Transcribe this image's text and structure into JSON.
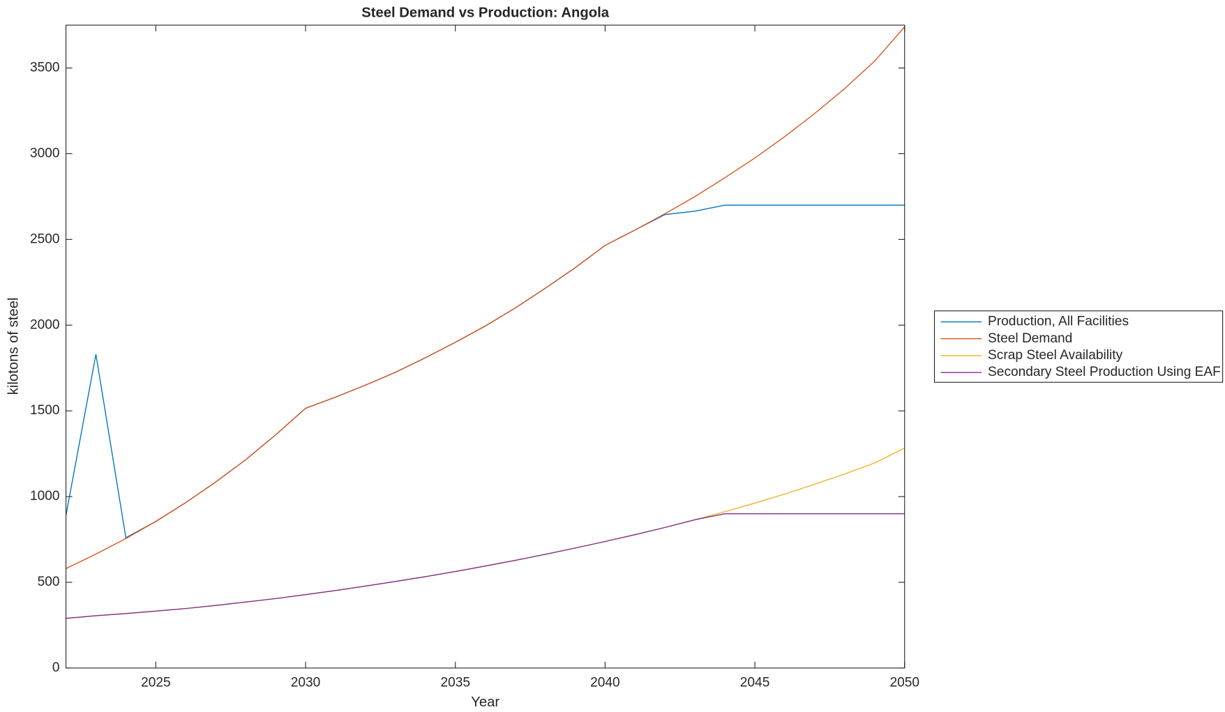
{
  "chart_data": {
    "type": "line",
    "title": "Steel Demand vs Production: Angola",
    "x_label": "Year",
    "y_label": "kilotons of steel",
    "x": [
      2022,
      2023,
      2024,
      2025,
      2026,
      2027,
      2028,
      2029,
      2030,
      2031,
      2032,
      2033,
      2034,
      2035,
      2036,
      2037,
      2038,
      2039,
      2040,
      2041,
      2042,
      2043,
      2044,
      2045,
      2046,
      2047,
      2048,
      2049,
      2050
    ],
    "series": [
      {
        "name": "Production, All Facilities",
        "color": "#0072BD",
        "values": [
          890,
          1830,
          760,
          855,
          965,
          1085,
          1215,
          1360,
          1515,
          1580,
          1650,
          1725,
          1810,
          1900,
          1995,
          2100,
          2215,
          2335,
          2465,
          2555,
          2645,
          2665,
          2700,
          2700,
          2700,
          2700,
          2700,
          2700,
          2700
        ]
      },
      {
        "name": "Steel Demand",
        "color": "#D95319",
        "values": [
          580,
          665,
          755,
          855,
          965,
          1085,
          1215,
          1360,
          1515,
          1580,
          1650,
          1725,
          1810,
          1900,
          1995,
          2100,
          2215,
          2335,
          2465,
          2555,
          2650,
          2750,
          2860,
          2975,
          3100,
          3235,
          3380,
          3540,
          3740
        ]
      },
      {
        "name": "Scrap Steel Availability",
        "color": "#EDB120",
        "values": [
          290,
          305,
          318,
          332,
          347,
          365,
          385,
          405,
          428,
          452,
          478,
          505,
          533,
          563,
          595,
          628,
          663,
          700,
          738,
          778,
          820,
          865,
          912,
          962,
          1015,
          1072,
          1132,
          1196,
          1283
        ]
      },
      {
        "name": "Secondary Steel Production Using EAF",
        "color": "#7E2F8E",
        "values": [
          290,
          305,
          318,
          332,
          347,
          365,
          385,
          405,
          428,
          452,
          478,
          505,
          533,
          563,
          595,
          628,
          663,
          700,
          738,
          778,
          820,
          865,
          900,
          900,
          900,
          900,
          900,
          900,
          900
        ]
      }
    ],
    "xlim": [
      2022,
      2050
    ],
    "xticks": [
      2025,
      2030,
      2035,
      2040,
      2045,
      2050
    ],
    "ylim": [
      0,
      3750
    ],
    "yticks": [
      0,
      500,
      1000,
      1500,
      2000,
      2500,
      3000,
      3500
    ],
    "legend": "eastoutside"
  }
}
